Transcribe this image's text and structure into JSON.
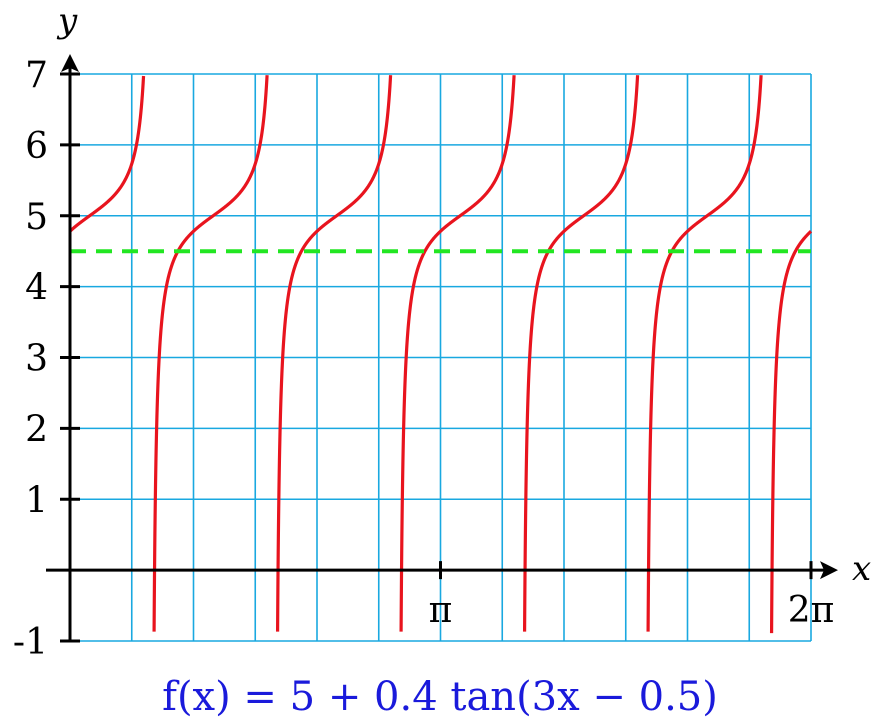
{
  "chart_data": {
    "type": "line",
    "title": "",
    "caption": "f(x) = 5 + 0.4 tan(3x − 0.5)",
    "xlabel": "x",
    "ylabel": "y",
    "xlim": [
      0,
      6.2832
    ],
    "ylim": [
      -1,
      7
    ],
    "y_ticks": [
      {
        "value": 7,
        "label": "7"
      },
      {
        "value": 6,
        "label": "6"
      },
      {
        "value": 5,
        "label": "5"
      },
      {
        "value": 4,
        "label": "4"
      },
      {
        "value": 3,
        "label": "3"
      },
      {
        "value": 2,
        "label": "2"
      },
      {
        "value": 1,
        "label": "1"
      },
      {
        "value": -1,
        "label": "-1"
      }
    ],
    "x_ticks": [
      {
        "value": 3.1416,
        "label": "π"
      },
      {
        "value": 6.2832,
        "label": "2π"
      }
    ],
    "grid": true,
    "grid_x_step": 0.5236,
    "grid_y_step": 1,
    "series": [
      {
        "kind": "function",
        "formula": "5 + 0.4*tan(3*x - 0.5)",
        "color": "#e8141e",
        "style": "solid"
      },
      {
        "kind": "horizontal_line",
        "y": 4.5,
        "color": "#22e622",
        "style": "dashed"
      }
    ],
    "colors": {
      "grid": "#19a8e0",
      "axes": "#000000",
      "caption": "#1a1adb"
    }
  }
}
